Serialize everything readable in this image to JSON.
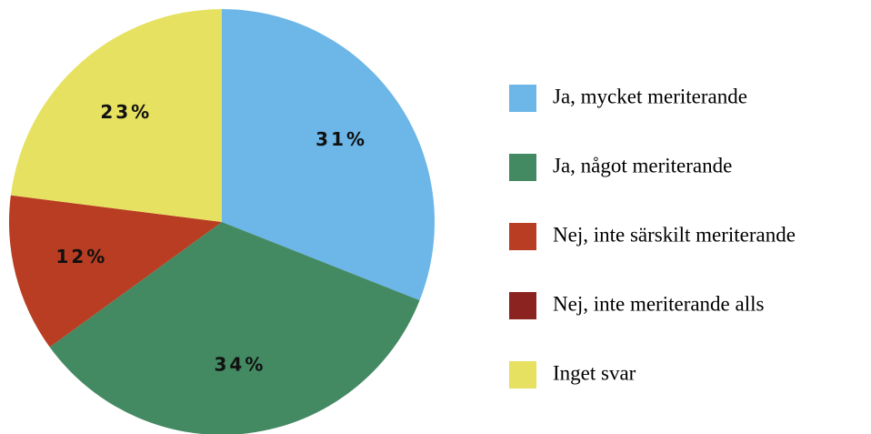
{
  "chart_data": {
    "type": "pie",
    "categories": [
      "Ja, mycket meriterande",
      "Ja, något meriterande",
      "Nej, inte särskilt meriterande",
      "Nej, inte meriterande alls",
      "Inget svar"
    ],
    "values": [
      31,
      34,
      12,
      0,
      23
    ],
    "value_labels": [
      "31%",
      "34%",
      "12%",
      null,
      "23%"
    ],
    "colors": [
      "#6cb6e8",
      "#438a62",
      "#b83d22",
      "#8b2321",
      "#e6e160"
    ],
    "legend": "right"
  }
}
